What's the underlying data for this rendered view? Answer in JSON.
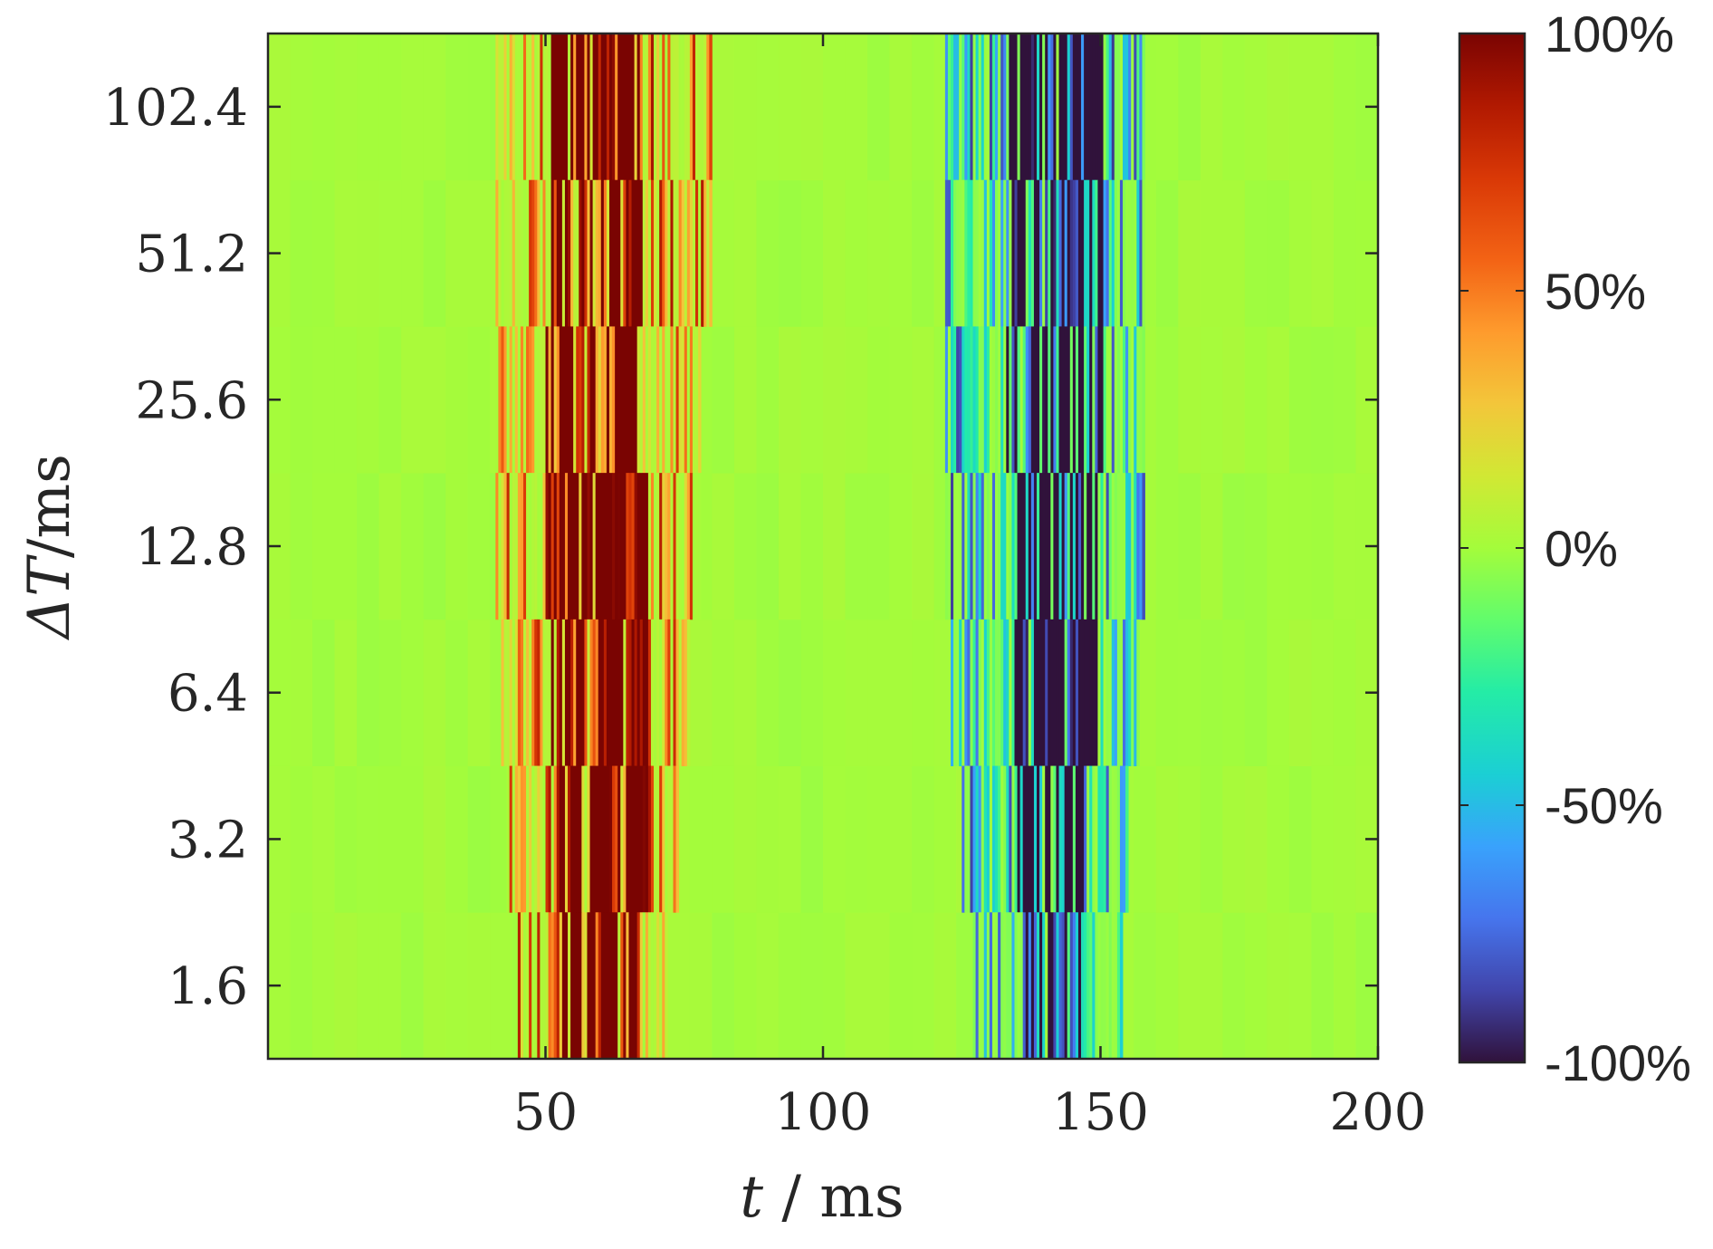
{
  "chart_data": {
    "type": "heatmap",
    "title": "",
    "xlabel": {
      "var": "t",
      "sep": " / ",
      "unit": "ms"
    },
    "ylabel": {
      "var": "ΔT",
      "sep": "/",
      "unit": "ms"
    },
    "xlim": [
      0,
      200
    ],
    "x_ticks": [
      50,
      100,
      150,
      200
    ],
    "x_tick_labels": [
      "50",
      "100",
      "150",
      "200"
    ],
    "y_scale": "log2",
    "y_rows": [
      1.6,
      3.2,
      6.4,
      12.8,
      25.6,
      51.2,
      102.4
    ],
    "y_tick_labels": [
      "1.6",
      "3.2",
      "6.4",
      "12.8",
      "25.6",
      "51.2",
      "102.4"
    ],
    "colorbar": {
      "range": [
        -100,
        100
      ],
      "ticks": [
        100,
        50,
        0,
        -50,
        -100
      ],
      "tick_labels": [
        "100%",
        "50%",
        "0%",
        "-50%",
        "-100%"
      ],
      "colormap": "turbo"
    },
    "bands": [
      {
        "sign": "positive",
        "rows": [
          {
            "dT": 102.4,
            "t_start": 41,
            "t_end": 80,
            "core_start": 51,
            "core_end": 67
          },
          {
            "dT": 51.2,
            "t_start": 41,
            "t_end": 80,
            "core_start": 51,
            "core_end": 67
          },
          {
            "dT": 25.6,
            "t_start": 41,
            "t_end": 78,
            "core_start": 50,
            "core_end": 67
          },
          {
            "dT": 12.8,
            "t_start": 41,
            "t_end": 78,
            "core_start": 50,
            "core_end": 68
          },
          {
            "dT": 6.4,
            "t_start": 42,
            "t_end": 76,
            "core_start": 51,
            "core_end": 68
          },
          {
            "dT": 3.2,
            "t_start": 43,
            "t_end": 74,
            "core_start": 52,
            "core_end": 68
          },
          {
            "dT": 1.6,
            "t_start": 45,
            "t_end": 72,
            "core_start": 53,
            "core_end": 66
          }
        ]
      },
      {
        "sign": "negative",
        "rows": [
          {
            "dT": 102.4,
            "t_start": 122,
            "t_end": 158,
            "core_start": 133,
            "core_end": 150
          },
          {
            "dT": 51.2,
            "t_start": 122,
            "t_end": 158,
            "core_start": 133,
            "core_end": 150
          },
          {
            "dT": 25.6,
            "t_start": 122,
            "t_end": 158,
            "core_start": 133,
            "core_end": 150
          },
          {
            "dT": 12.8,
            "t_start": 122,
            "t_end": 158,
            "core_start": 134,
            "core_end": 149
          },
          {
            "dT": 6.4,
            "t_start": 123,
            "t_end": 157,
            "core_start": 134,
            "core_end": 149
          },
          {
            "dT": 3.2,
            "t_start": 125,
            "t_end": 155,
            "core_start": 135,
            "core_end": 147
          },
          {
            "dT": 1.6,
            "t_start": 127,
            "t_end": 154,
            "core_start": 136,
            "core_end": 146
          }
        ]
      }
    ],
    "background_value": 0,
    "grid": false
  }
}
